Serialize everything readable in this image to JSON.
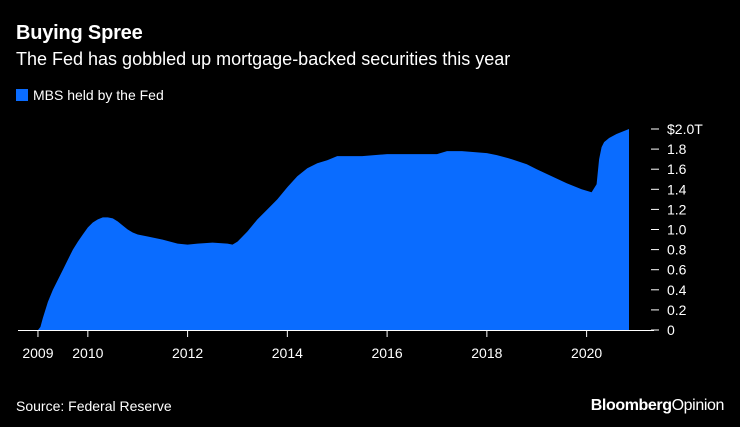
{
  "chart_data": {
    "type": "area",
    "title": "Buying Spree",
    "subtitle": "The Fed has gobbled up mortgage-backed securities this year",
    "legend": {
      "placement": "top-left"
    },
    "series": [
      {
        "name": "MBS held by the Fed",
        "color": "#0a6cff",
        "x": [
          2009.0,
          2009.05,
          2009.1,
          2009.2,
          2009.3,
          2009.4,
          2009.5,
          2009.6,
          2009.7,
          2009.8,
          2009.9,
          2010.0,
          2010.1,
          2010.2,
          2010.3,
          2010.4,
          2010.5,
          2010.6,
          2010.7,
          2010.8,
          2010.9,
          2011.0,
          2011.2,
          2011.5,
          2011.8,
          2012.0,
          2012.2,
          2012.5,
          2012.8,
          2012.9,
          2013.0,
          2013.2,
          2013.4,
          2013.6,
          2013.8,
          2014.0,
          2014.2,
          2014.4,
          2014.6,
          2014.8,
          2015.0,
          2015.2,
          2015.5,
          2016.0,
          2016.5,
          2017.0,
          2017.2,
          2017.5,
          2018.0,
          2018.2,
          2018.5,
          2018.8,
          2019.0,
          2019.3,
          2019.6,
          2019.9,
          2020.1,
          2020.2,
          2020.25,
          2020.3,
          2020.35,
          2020.45,
          2020.6,
          2020.75,
          2020.85
        ],
        "values": [
          0.0,
          0.03,
          0.12,
          0.28,
          0.4,
          0.5,
          0.6,
          0.7,
          0.8,
          0.88,
          0.95,
          1.02,
          1.07,
          1.1,
          1.12,
          1.12,
          1.11,
          1.08,
          1.04,
          1.0,
          0.97,
          0.95,
          0.93,
          0.9,
          0.86,
          0.85,
          0.86,
          0.87,
          0.86,
          0.85,
          0.88,
          0.98,
          1.1,
          1.2,
          1.3,
          1.42,
          1.53,
          1.61,
          1.66,
          1.69,
          1.73,
          1.73,
          1.73,
          1.75,
          1.75,
          1.75,
          1.78,
          1.78,
          1.76,
          1.74,
          1.7,
          1.65,
          1.6,
          1.53,
          1.46,
          1.4,
          1.37,
          1.45,
          1.7,
          1.82,
          1.87,
          1.91,
          1.95,
          1.98,
          2.0
        ]
      }
    ],
    "x_ticks": [
      "2009",
      "2010",
      "2012",
      "2014",
      "2016",
      "2018",
      "2020"
    ],
    "x_tick_values": [
      2009,
      2010,
      2012,
      2014,
      2016,
      2018,
      2020
    ],
    "y_ticks": [
      "$2.0T",
      "1.8",
      "1.6",
      "1.4",
      "1.2",
      "1.0",
      "0.8",
      "0.6",
      "0.4",
      "0.2",
      "0"
    ],
    "y_tick_values": [
      2.0,
      1.8,
      1.6,
      1.4,
      1.2,
      1.0,
      0.8,
      0.6,
      0.4,
      0.2,
      0
    ],
    "xlim": [
      2008.6,
      2020.95
    ],
    "ylim": [
      0,
      2.0
    ],
    "xlabel": "",
    "ylabel": "",
    "grid": false
  },
  "footer": {
    "source": "Source: Federal Reserve",
    "logo_brand": "Bloomberg",
    "logo_section": "Opinion"
  },
  "colors": {
    "background": "#000000",
    "area": "#0a6cff",
    "text": "#ffffff",
    "axis": "#ffffff"
  }
}
